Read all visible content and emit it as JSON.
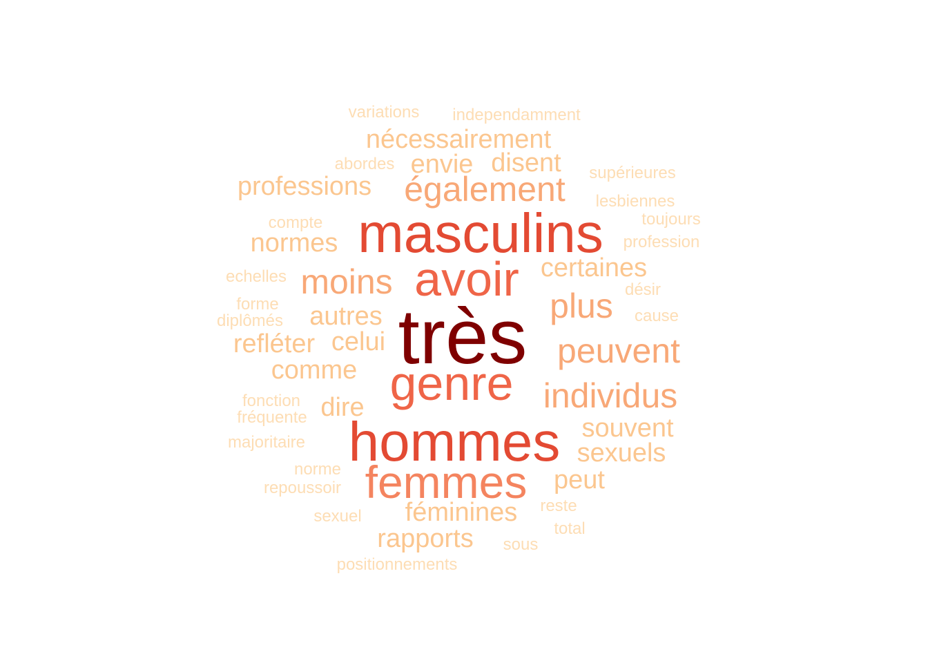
{
  "word_cloud": {
    "words": [
      {
        "text": "très",
        "weight": 1.0,
        "color": "#7f0000"
      },
      {
        "text": "hommes",
        "weight": 0.72,
        "color": "#e34a33"
      },
      {
        "text": "masculins",
        "weight": 0.72,
        "color": "#e34a33"
      },
      {
        "text": "avoir",
        "weight": 0.64,
        "color": "#ef6548"
      },
      {
        "text": "genre",
        "weight": 0.64,
        "color": "#ef6548"
      },
      {
        "text": "femmes",
        "weight": 0.6,
        "color": "#f4845f"
      },
      {
        "text": "également",
        "weight": 0.46,
        "color": "#f8a877"
      },
      {
        "text": "moins",
        "weight": 0.46,
        "color": "#f8a877"
      },
      {
        "text": "peuvent",
        "weight": 0.46,
        "color": "#f8a877"
      },
      {
        "text": "individus",
        "weight": 0.46,
        "color": "#f8a877"
      },
      {
        "text": "plus",
        "weight": 0.46,
        "color": "#f8a877"
      },
      {
        "text": "nécessairement",
        "weight": 0.34,
        "color": "#fbc68f"
      },
      {
        "text": "envie",
        "weight": 0.34,
        "color": "#fbc68f"
      },
      {
        "text": "disent",
        "weight": 0.34,
        "color": "#fbc68f"
      },
      {
        "text": "professions",
        "weight": 0.34,
        "color": "#fbc68f"
      },
      {
        "text": "normes",
        "weight": 0.34,
        "color": "#fbc68f"
      },
      {
        "text": "certaines",
        "weight": 0.34,
        "color": "#fbc68f"
      },
      {
        "text": "autres",
        "weight": 0.34,
        "color": "#fbc68f"
      },
      {
        "text": "celui",
        "weight": 0.34,
        "color": "#fbc68f"
      },
      {
        "text": "refléter",
        "weight": 0.34,
        "color": "#fbc68f"
      },
      {
        "text": "comme",
        "weight": 0.34,
        "color": "#fbc68f"
      },
      {
        "text": "dire",
        "weight": 0.34,
        "color": "#fbc68f"
      },
      {
        "text": "souvent",
        "weight": 0.34,
        "color": "#fbc68f"
      },
      {
        "text": "sexuels",
        "weight": 0.34,
        "color": "#fbc68f"
      },
      {
        "text": "peut",
        "weight": 0.34,
        "color": "#fbc68f"
      },
      {
        "text": "féminines",
        "weight": 0.34,
        "color": "#fbc68f"
      },
      {
        "text": "rapports",
        "weight": 0.34,
        "color": "#fbc68f"
      },
      {
        "text": "variations",
        "weight": 0.2,
        "color": "#fdddb4"
      },
      {
        "text": "independamment",
        "weight": 0.2,
        "color": "#fdddb4"
      },
      {
        "text": "abordes",
        "weight": 0.2,
        "color": "#fdddb4"
      },
      {
        "text": "supérieures",
        "weight": 0.2,
        "color": "#fdddb4"
      },
      {
        "text": "lesbiennes",
        "weight": 0.2,
        "color": "#fdddb4"
      },
      {
        "text": "compte",
        "weight": 0.2,
        "color": "#fdddb4"
      },
      {
        "text": "toujours",
        "weight": 0.2,
        "color": "#fdddb4"
      },
      {
        "text": "profession",
        "weight": 0.2,
        "color": "#fdddb4"
      },
      {
        "text": "echelles",
        "weight": 0.2,
        "color": "#fdddb4"
      },
      {
        "text": "désir",
        "weight": 0.2,
        "color": "#fdddb4"
      },
      {
        "text": "forme",
        "weight": 0.2,
        "color": "#fdddb4"
      },
      {
        "text": "diplômés",
        "weight": 0.2,
        "color": "#fdddb4"
      },
      {
        "text": "cause",
        "weight": 0.2,
        "color": "#fdddb4"
      },
      {
        "text": "fonction",
        "weight": 0.2,
        "color": "#fdddb4"
      },
      {
        "text": "fréquente",
        "weight": 0.2,
        "color": "#fdddb4"
      },
      {
        "text": "majoritaire",
        "weight": 0.2,
        "color": "#fdddb4"
      },
      {
        "text": "norme",
        "weight": 0.2,
        "color": "#fdddb4"
      },
      {
        "text": "repoussoir",
        "weight": 0.2,
        "color": "#fdddb4"
      },
      {
        "text": "reste",
        "weight": 0.2,
        "color": "#fdddb4"
      },
      {
        "text": "sexuel",
        "weight": 0.2,
        "color": "#fdddb4"
      },
      {
        "text": "total",
        "weight": 0.2,
        "color": "#fdddb4"
      },
      {
        "text": "sous",
        "weight": 0.2,
        "color": "#fdddb4"
      },
      {
        "text": "positionnements",
        "weight": 0.2,
        "color": "#fdddb4"
      }
    ]
  }
}
